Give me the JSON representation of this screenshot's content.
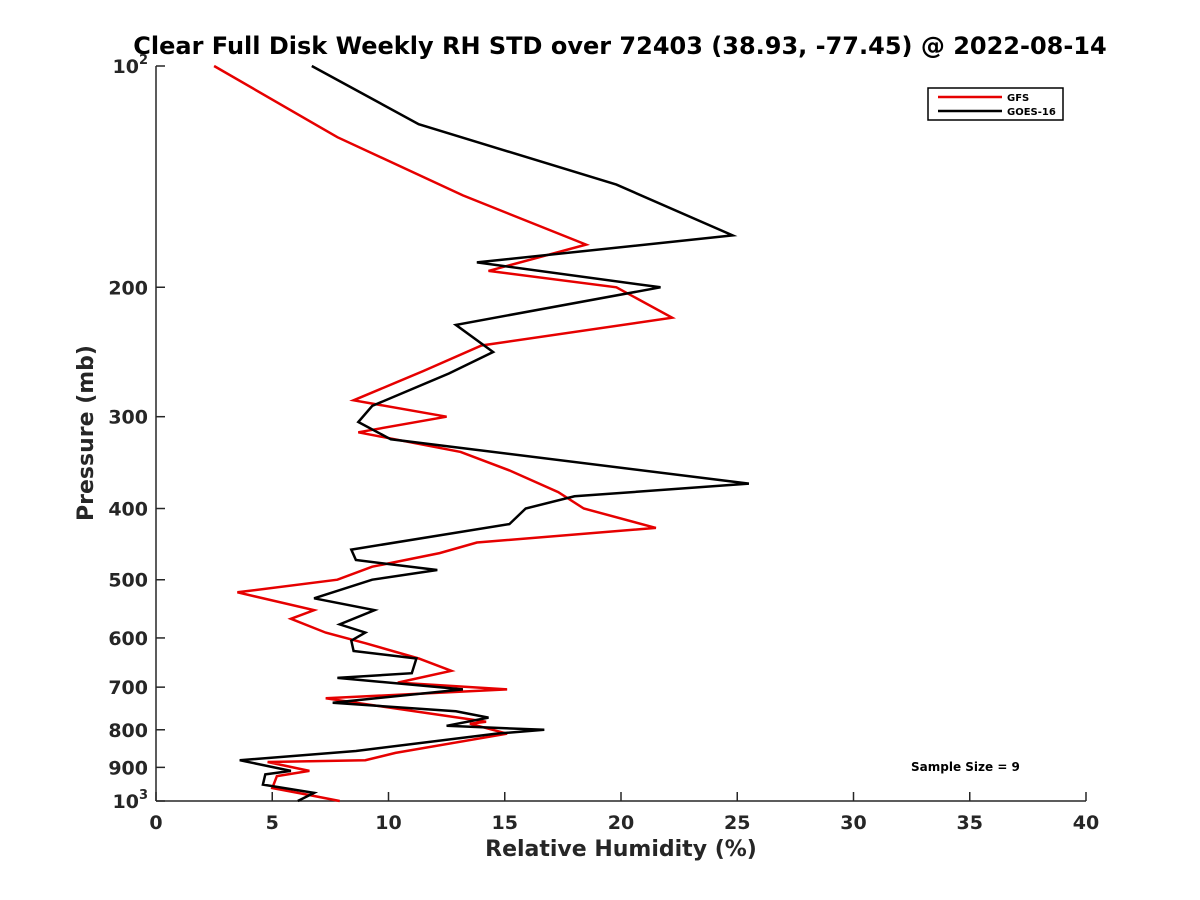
{
  "chart_data": {
    "type": "line",
    "title": "Clear Full Disk Weekly RH STD over 72403 (38.93, -77.45) @ 2022-08-14",
    "xlabel": "Relative Humidity (%)",
    "ylabel": "Pressure (mb)",
    "xlim": [
      0,
      40
    ],
    "ylim": [
      100,
      1000
    ],
    "y_scale": "log",
    "y_reversed": true,
    "x_ticks": [
      "0",
      "5",
      "10",
      "15",
      "20",
      "25",
      "30",
      "35",
      "40"
    ],
    "y_ticks": [
      {
        "value": 100,
        "base": "10",
        "exp": "2"
      },
      {
        "value": 200,
        "base": "200",
        "exp": ""
      },
      {
        "value": 300,
        "base": "300",
        "exp": ""
      },
      {
        "value": 400,
        "base": "400",
        "exp": ""
      },
      {
        "value": 500,
        "base": "500",
        "exp": ""
      },
      {
        "value": 600,
        "base": "600",
        "exp": ""
      },
      {
        "value": 700,
        "base": "700",
        "exp": ""
      },
      {
        "value": 800,
        "base": "800",
        "exp": ""
      },
      {
        "value": 900,
        "base": "900",
        "exp": ""
      },
      {
        "value": 1000,
        "base": "10",
        "exp": "3"
      }
    ],
    "grid": false,
    "legend_position": "top-right",
    "annotation": "Sample Size = 9",
    "series": [
      {
        "name": "GFS",
        "color": "#e60000",
        "points": [
          [
            2.5,
            100
          ],
          [
            7.8,
            125
          ],
          [
            13.2,
            150
          ],
          [
            18.5,
            175
          ],
          [
            14.3,
            190
          ],
          [
            19.8,
            200
          ],
          [
            22.2,
            220
          ],
          [
            14.0,
            240
          ],
          [
            11.5,
            260
          ],
          [
            8.5,
            285
          ],
          [
            12.5,
            300
          ],
          [
            8.7,
            315
          ],
          [
            13.1,
            335
          ],
          [
            15.2,
            355
          ],
          [
            17.3,
            380
          ],
          [
            18.4,
            400
          ],
          [
            21.5,
            425
          ],
          [
            13.8,
            445
          ],
          [
            12.2,
            460
          ],
          [
            9.3,
            480
          ],
          [
            7.8,
            500
          ],
          [
            3.5,
            520
          ],
          [
            6.8,
            550
          ],
          [
            5.8,
            565
          ],
          [
            7.3,
            590
          ],
          [
            9.0,
            610
          ],
          [
            11.3,
            640
          ],
          [
            12.7,
            665
          ],
          [
            10.4,
            690
          ],
          [
            15.1,
            705
          ],
          [
            7.3,
            725
          ],
          [
            13.0,
            770
          ],
          [
            14.2,
            780
          ],
          [
            13.5,
            785
          ],
          [
            15.1,
            810
          ],
          [
            10.3,
            860
          ],
          [
            9.0,
            880
          ],
          [
            4.8,
            885
          ],
          [
            6.6,
            910
          ],
          [
            5.2,
            925
          ],
          [
            5.0,
            960
          ],
          [
            6.5,
            980
          ],
          [
            7.9,
            1000
          ]
        ]
      },
      {
        "name": "GOES-16",
        "color": "#000000",
        "points": [
          [
            6.7,
            100
          ],
          [
            11.3,
            120
          ],
          [
            19.8,
            145
          ],
          [
            24.8,
            170
          ],
          [
            13.8,
            185
          ],
          [
            21.7,
            200
          ],
          [
            12.9,
            225
          ],
          [
            14.5,
            245
          ],
          [
            12.6,
            262
          ],
          [
            9.3,
            290
          ],
          [
            8.7,
            305
          ],
          [
            10.1,
            322
          ],
          [
            25.5,
            370
          ],
          [
            18.0,
            385
          ],
          [
            15.9,
            400
          ],
          [
            15.2,
            420
          ],
          [
            8.4,
            455
          ],
          [
            8.6,
            470
          ],
          [
            12.1,
            485
          ],
          [
            9.3,
            500
          ],
          [
            6.8,
            530
          ],
          [
            9.4,
            550
          ],
          [
            7.9,
            575
          ],
          [
            9.0,
            590
          ],
          [
            8.4,
            605
          ],
          [
            8.5,
            625
          ],
          [
            11.2,
            640
          ],
          [
            11.0,
            670
          ],
          [
            7.8,
            680
          ],
          [
            13.2,
            705
          ],
          [
            7.6,
            735
          ],
          [
            12.9,
            755
          ],
          [
            14.3,
            770
          ],
          [
            12.5,
            790
          ],
          [
            16.7,
            800
          ],
          [
            14.6,
            810
          ],
          [
            8.6,
            855
          ],
          [
            3.6,
            880
          ],
          [
            5.8,
            910
          ],
          [
            4.7,
            920
          ],
          [
            4.6,
            950
          ],
          [
            6.8,
            975
          ],
          [
            6.1,
            1000
          ]
        ]
      }
    ]
  }
}
